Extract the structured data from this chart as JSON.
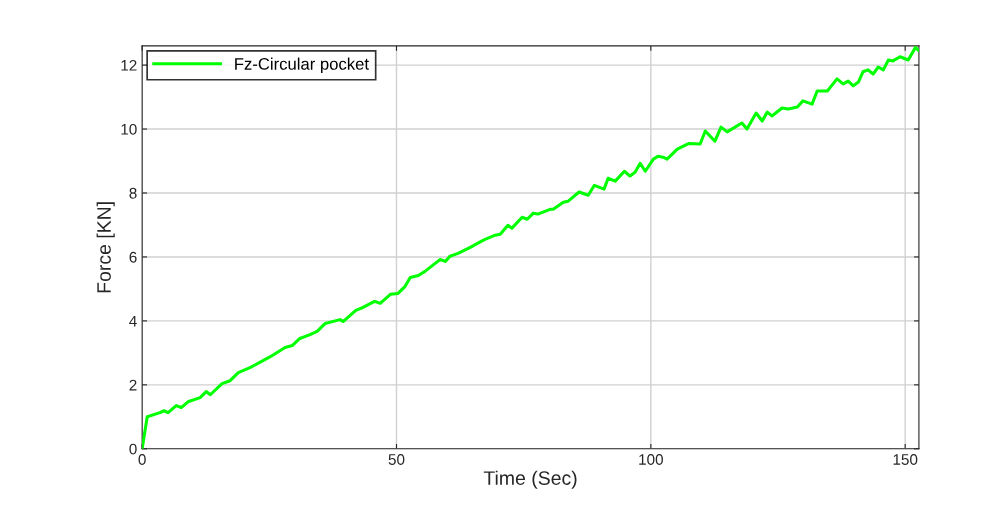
{
  "chart_data": {
    "type": "line",
    "xlabel": "Time (Sec)",
    "ylabel": "Force [KN]",
    "xlim": [
      0,
      152.7
    ],
    "ylim": [
      0,
      12.6
    ],
    "xticks": [
      0,
      50,
      100,
      150
    ],
    "yticks": [
      0,
      2,
      4,
      6,
      8,
      10,
      12
    ],
    "grid": true,
    "legend": "top left",
    "marker": "none",
    "line_style": "solid",
    "series": [
      {
        "name": "Fz-Circular pocket",
        "color": "#00ff00",
        "x": [
          0,
          1,
          3.5,
          4.3,
          5.1,
          6.7,
          7.7,
          9,
          11.4,
          12.6,
          13.4,
          15.7,
          17.3,
          18.9,
          21.2,
          25.2,
          28.1,
          29.5,
          31,
          33,
          34.4,
          36,
          38.9,
          39.5,
          42,
          43.4,
          45.7,
          46.8,
          48.8,
          50.3,
          51.7,
          52.7,
          54.3,
          55.6,
          57.6,
          58.6,
          59.6,
          60.5,
          62.1,
          64.5,
          66,
          67.4,
          69.4,
          70.4,
          71.9,
          72.7,
          74.7,
          75.7,
          76.9,
          77.8,
          80.2,
          80.8,
          82.8,
          83.7,
          85.9,
          87.7,
          88.9,
          90.8,
          91.6,
          93,
          94.8,
          95.9,
          96.9,
          97.9,
          98.9,
          100.5,
          101.4,
          102.4,
          103.2,
          105.2,
          107.5,
          109.7,
          110.7,
          112.6,
          113.8,
          115,
          117.9,
          118.9,
          120.7,
          121.9,
          122.9,
          123.8,
          125.8,
          127,
          128.8,
          129.9,
          131.7,
          132.7,
          134.7,
          136.6,
          137.8,
          138.8,
          139.8,
          140.8,
          141.7,
          142.7,
          143.7,
          144.7,
          145.7,
          146.7,
          147.6,
          149,
          150.6,
          152,
          152.7
        ],
        "values": [
          0,
          1.0,
          1.13,
          1.19,
          1.13,
          1.35,
          1.29,
          1.47,
          1.6,
          1.79,
          1.69,
          2.04,
          2.13,
          2.38,
          2.54,
          2.88,
          3.17,
          3.23,
          3.45,
          3.57,
          3.67,
          3.92,
          4.04,
          3.98,
          4.33,
          4.42,
          4.61,
          4.55,
          4.83,
          4.86,
          5.08,
          5.36,
          5.42,
          5.55,
          5.8,
          5.92,
          5.86,
          6.02,
          6.11,
          6.3,
          6.43,
          6.55,
          6.68,
          6.71,
          6.99,
          6.9,
          7.24,
          7.18,
          7.37,
          7.34,
          7.49,
          7.49,
          7.71,
          7.74,
          8.03,
          7.93,
          8.24,
          8.12,
          8.46,
          8.37,
          8.68,
          8.53,
          8.65,
          8.93,
          8.68,
          9.06,
          9.15,
          9.12,
          9.06,
          9.37,
          9.55,
          9.53,
          9.94,
          9.62,
          10.06,
          9.91,
          10.19,
          10.0,
          10.5,
          10.25,
          10.53,
          10.41,
          10.66,
          10.63,
          10.69,
          10.88,
          10.78,
          11.19,
          11.19,
          11.57,
          11.41,
          11.5,
          11.35,
          11.47,
          11.79,
          11.85,
          11.72,
          11.94,
          11.85,
          12.16,
          12.13,
          12.26,
          12.16,
          12.55,
          12.45
        ]
      }
    ]
  }
}
